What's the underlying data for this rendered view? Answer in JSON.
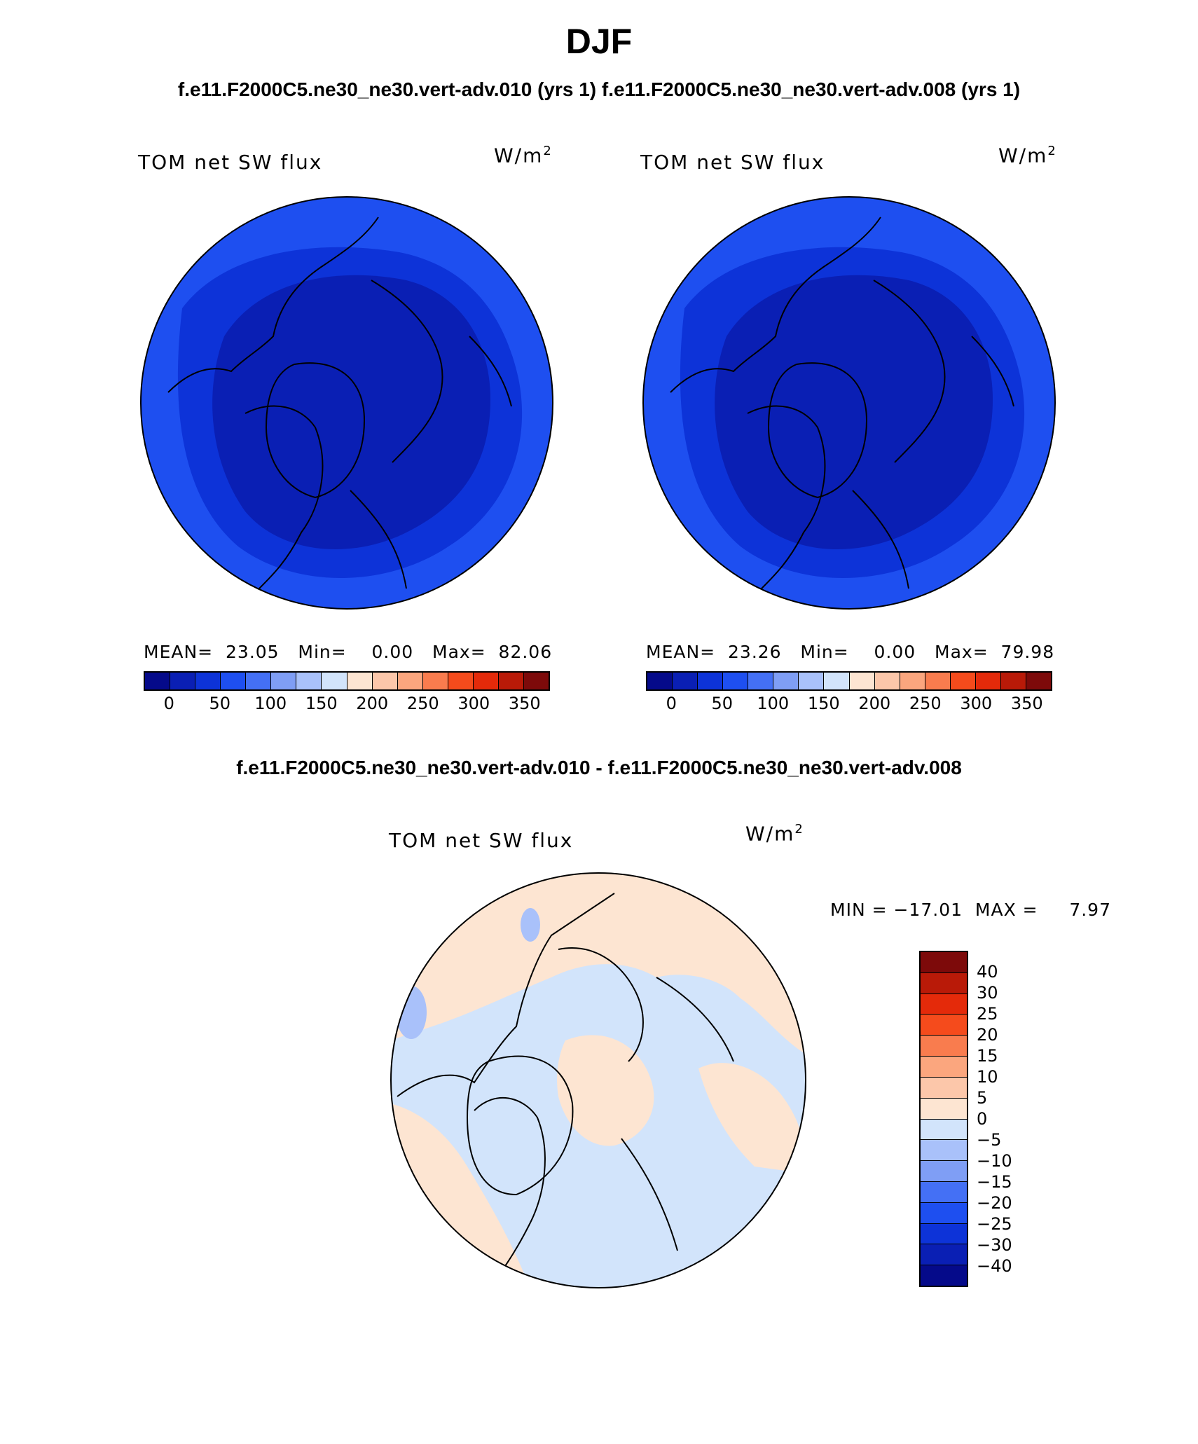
{
  "title": "DJF",
  "top_subtitle": "f.e11.F2000C5.ne30_ne30.vert-adv.010 (yrs 1) f.e11.F2000C5.ne30_ne30.vert-adv.008 (yrs 1)",
  "diff_subtitle": "f.e11.F2000C5.ne30_ne30.vert-adv.010 - f.e11.F2000C5.ne30_ne30.vert-adv.008",
  "panels": [
    {
      "variable": "TOM net SW flux",
      "units_base": "W/m",
      "units_exp": "2",
      "stats": "MEAN=  23.05   Min=    0.00   Max=  82.06"
    },
    {
      "variable": "TOM net SW flux",
      "units_base": "W/m",
      "units_exp": "2",
      "stats": "MEAN=  23.26   Min=    0.00   Max=  79.98"
    }
  ],
  "diff_panel": {
    "variable": "TOM net SW flux",
    "units_base": "W/m",
    "units_exp": "2",
    "stats": "MIN = −17.01  MAX =     7.97"
  },
  "colorbar_abs": {
    "colors": [
      "#050a8a",
      "#0a1fb4",
      "#0d33d8",
      "#1e4ff0",
      "#4470f5",
      "#7f9ef5",
      "#a9c1fa",
      "#d2e4fb",
      "#fde5d2",
      "#fcc7aa",
      "#fba67e",
      "#f97c4e",
      "#f54b1c",
      "#e42a0a",
      "#b91a08",
      "#7d0a0a"
    ],
    "ticks": [
      "0",
      "50",
      "100",
      "150",
      "200",
      "250",
      "300",
      "350"
    ]
  },
  "colorbar_diff": {
    "colors": [
      "#7d0a0a",
      "#b91a08",
      "#e42a0a",
      "#f54b1c",
      "#f97c4e",
      "#fba67e",
      "#fcc7aa",
      "#fde5d2",
      "#d2e4fb",
      "#a9c1fa",
      "#7f9ef5",
      "#4470f5",
      "#1e4ff0",
      "#0d33d8",
      "#0a1fb4",
      "#050a8a"
    ],
    "ticks": [
      "40",
      "30",
      "25",
      "20",
      "15",
      "10",
      "5",
      "0",
      "−5",
      "−10",
      "−15",
      "−20",
      "−25",
      "−30",
      "−40"
    ]
  },
  "map_colors": {
    "abs_outer": "#1e4ff0",
    "abs_mid": "#0d33d8",
    "abs_inner": "#0a1fb4",
    "diff_neg": "#d2e4fb",
    "diff_pos": "#fde5d2",
    "diff_neg2": "#a9c1fa"
  }
}
